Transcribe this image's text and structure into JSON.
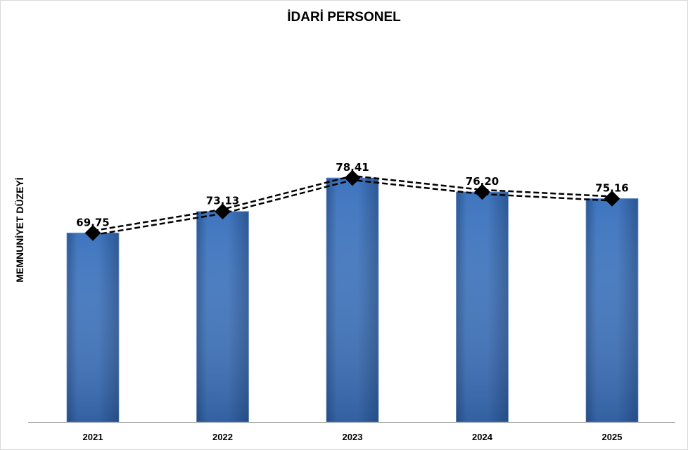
{
  "chart_data": {
    "type": "bar",
    "title": "İDARİ PERSONEL",
    "xlabel": "",
    "ylabel": "MEMNUNİYET DÜZEYİ",
    "ylim": [
      40,
      100
    ],
    "grid": false,
    "categories": [
      "2021",
      "2022",
      "2023",
      "2024",
      "2025"
    ],
    "values": [
      69.75,
      73.13,
      78.41,
      76.2,
      75.16
    ],
    "data_labels": [
      "69,75",
      "73,13",
      "78,41",
      "76,20",
      "75,16"
    ],
    "overlay": {
      "type": "line",
      "style": "double-dashed",
      "marker": "diamond",
      "values": [
        69.75,
        73.13,
        78.41,
        76.2,
        75.16
      ]
    },
    "colors": {
      "bar": "#3f75bf",
      "bar_dark": "#2a5592",
      "line": "#000000"
    }
  }
}
